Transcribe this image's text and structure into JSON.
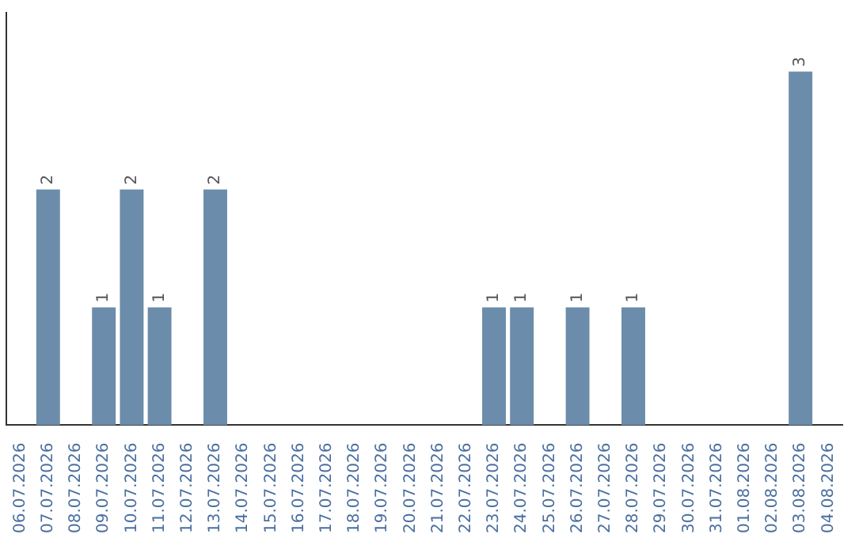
{
  "chart_data": {
    "type": "bar",
    "categories": [
      "06.07.2026",
      "07.07.2026",
      "08.07.2026",
      "09.07.2026",
      "10.07.2026",
      "11.07.2026",
      "12.07.2026",
      "13.07.2026",
      "14.07.2026",
      "15.07.2026",
      "16.07.2026",
      "17.07.2026",
      "18.07.2026",
      "19.07.2026",
      "20.07.2026",
      "21.07.2026",
      "22.07.2026",
      "23.07.2026",
      "24.07.2026",
      "25.07.2026",
      "26.07.2026",
      "27.07.2026",
      "28.07.2026",
      "29.07.2026",
      "30.07.2026",
      "31.07.2026",
      "01.08.2026",
      "02.08.2026",
      "03.08.2026",
      "04.08.2026"
    ],
    "values": [
      0,
      2,
      0,
      1,
      2,
      1,
      0,
      2,
      0,
      0,
      0,
      0,
      0,
      0,
      0,
      0,
      0,
      1,
      1,
      0,
      1,
      0,
      1,
      0,
      0,
      0,
      0,
      0,
      3,
      0
    ],
    "value_labels": [
      null,
      "2",
      null,
      "1",
      "2",
      "1",
      null,
      "2",
      null,
      null,
      null,
      null,
      null,
      null,
      null,
      null,
      null,
      "1",
      "1",
      null,
      "1",
      null,
      "1",
      null,
      null,
      null,
      null,
      null,
      "3",
      null
    ],
    "color": "#6b8caa",
    "tick_labels": "x",
    "grid": false,
    "legend": false
  }
}
